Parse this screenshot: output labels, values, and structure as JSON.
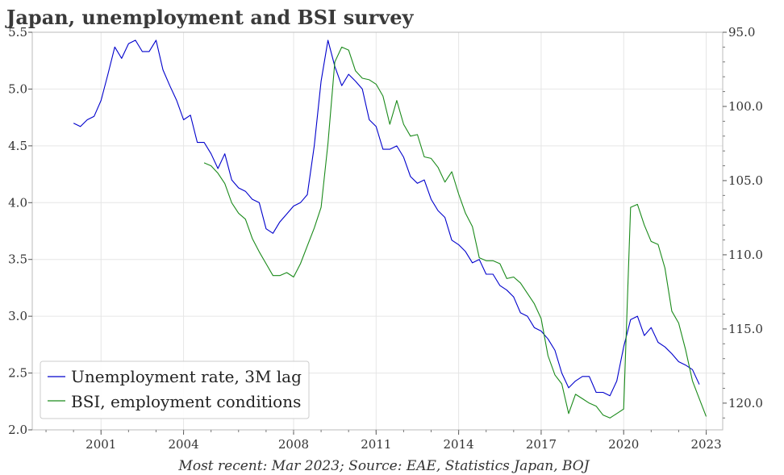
{
  "chart_data": {
    "type": "line",
    "title": "Japan, unemployment and BSI survey",
    "source_note": "Most recent: Mar 2023; Source: EAE, Statistics Japan, BOJ",
    "xlim": [
      1998.5,
      2023.6
    ],
    "x_ticks": [
      {
        "label": "2001",
        "value": 2001
      },
      {
        "label": "2004",
        "value": 2004
      },
      {
        "label": "2008",
        "value": 2008
      },
      {
        "label": "2011",
        "value": 2011
      },
      {
        "label": "2014",
        "value": 2014
      },
      {
        "label": "2017",
        "value": 2017
      },
      {
        "label": "2020",
        "value": 2020
      },
      {
        "label": "2023",
        "value": 2023
      }
    ],
    "y_left": {
      "ylim": [
        2.0,
        5.5
      ],
      "ticks": [
        "2.0",
        "2.5",
        "3.0",
        "3.5",
        "4.0",
        "4.5",
        "5.0",
        "5.5"
      ]
    },
    "y_right": {
      "ylim": [
        95.0,
        121.8
      ],
      "inverted": true,
      "ticks": [
        "95.0",
        "100.0",
        "105.0",
        "110.0",
        "115.0",
        "120.0"
      ]
    },
    "grid": true,
    "legend_position": "bottom-left",
    "series": [
      {
        "name": "Unemployment rate, 3M lag",
        "color": "#0000cc",
        "axis": "left",
        "points": [
          [
            2000.0,
            4.7
          ],
          [
            2000.25,
            4.67
          ],
          [
            2000.5,
            4.73
          ],
          [
            2000.75,
            4.76
          ],
          [
            2001.0,
            4.9
          ],
          [
            2001.25,
            5.13
          ],
          [
            2001.5,
            5.37
          ],
          [
            2001.75,
            5.27
          ],
          [
            2002.0,
            5.4
          ],
          [
            2002.25,
            5.43
          ],
          [
            2002.5,
            5.33
          ],
          [
            2002.75,
            5.33
          ],
          [
            2003.0,
            5.43
          ],
          [
            2003.25,
            5.17
          ],
          [
            2003.5,
            5.03
          ],
          [
            2003.75,
            4.9
          ],
          [
            2004.0,
            4.73
          ],
          [
            2004.25,
            4.77
          ],
          [
            2004.5,
            4.53
          ],
          [
            2004.75,
            4.53
          ],
          [
            2005.0,
            4.43
          ],
          [
            2005.25,
            4.3
          ],
          [
            2005.5,
            4.43
          ],
          [
            2005.75,
            4.2
          ],
          [
            2006.0,
            4.13
          ],
          [
            2006.25,
            4.1
          ],
          [
            2006.5,
            4.03
          ],
          [
            2006.75,
            4.0
          ],
          [
            2007.0,
            3.77
          ],
          [
            2007.25,
            3.73
          ],
          [
            2007.5,
            3.83
          ],
          [
            2007.75,
            3.9
          ],
          [
            2008.0,
            3.97
          ],
          [
            2008.25,
            4.0
          ],
          [
            2008.5,
            4.07
          ],
          [
            2008.75,
            4.5
          ],
          [
            2009.0,
            5.07
          ],
          [
            2009.25,
            5.43
          ],
          [
            2009.5,
            5.2
          ],
          [
            2009.75,
            5.03
          ],
          [
            2010.0,
            5.13
          ],
          [
            2010.25,
            5.07
          ],
          [
            2010.5,
            5.0
          ],
          [
            2010.75,
            4.73
          ],
          [
            2011.0,
            4.67
          ],
          [
            2011.25,
            4.47
          ],
          [
            2011.5,
            4.47
          ],
          [
            2011.75,
            4.5
          ],
          [
            2012.0,
            4.4
          ],
          [
            2012.25,
            4.23
          ],
          [
            2012.5,
            4.17
          ],
          [
            2012.75,
            4.2
          ],
          [
            2013.0,
            4.03
          ],
          [
            2013.25,
            3.93
          ],
          [
            2013.5,
            3.87
          ],
          [
            2013.75,
            3.67
          ],
          [
            2014.0,
            3.63
          ],
          [
            2014.25,
            3.57
          ],
          [
            2014.5,
            3.47
          ],
          [
            2014.75,
            3.5
          ],
          [
            2015.0,
            3.37
          ],
          [
            2015.25,
            3.37
          ],
          [
            2015.5,
            3.27
          ],
          [
            2015.75,
            3.23
          ],
          [
            2016.0,
            3.17
          ],
          [
            2016.25,
            3.03
          ],
          [
            2016.5,
            3.0
          ],
          [
            2016.75,
            2.9
          ],
          [
            2017.0,
            2.87
          ],
          [
            2017.25,
            2.8
          ],
          [
            2017.5,
            2.7
          ],
          [
            2017.75,
            2.5
          ],
          [
            2018.0,
            2.37
          ],
          [
            2018.25,
            2.43
          ],
          [
            2018.5,
            2.47
          ],
          [
            2018.75,
            2.47
          ],
          [
            2019.0,
            2.33
          ],
          [
            2019.25,
            2.33
          ],
          [
            2019.5,
            2.3
          ],
          [
            2019.75,
            2.43
          ],
          [
            2020.0,
            2.73
          ],
          [
            2020.25,
            2.97
          ],
          [
            2020.5,
            3.0
          ],
          [
            2020.75,
            2.83
          ],
          [
            2021.0,
            2.9
          ],
          [
            2021.25,
            2.77
          ],
          [
            2021.5,
            2.73
          ],
          [
            2021.75,
            2.67
          ],
          [
            2022.0,
            2.6
          ],
          [
            2022.25,
            2.57
          ],
          [
            2022.5,
            2.53
          ],
          [
            2022.75,
            2.4
          ]
        ]
      },
      {
        "name": "BSI, employment conditions",
        "color": "#1a8a1a",
        "axis": "right",
        "points": [
          [
            2004.75,
            103.8
          ],
          [
            2005.0,
            104.0
          ],
          [
            2005.25,
            104.5
          ],
          [
            2005.5,
            105.2
          ],
          [
            2005.75,
            106.5
          ],
          [
            2006.0,
            107.2
          ],
          [
            2006.25,
            107.6
          ],
          [
            2006.5,
            108.9
          ],
          [
            2006.75,
            109.8
          ],
          [
            2007.0,
            110.6
          ],
          [
            2007.25,
            111.4
          ],
          [
            2007.5,
            111.4
          ],
          [
            2007.75,
            111.2
          ],
          [
            2008.0,
            111.5
          ],
          [
            2008.25,
            110.6
          ],
          [
            2008.5,
            109.4
          ],
          [
            2008.75,
            108.2
          ],
          [
            2009.0,
            106.8
          ],
          [
            2009.25,
            102.5
          ],
          [
            2009.5,
            97.0
          ],
          [
            2009.75,
            96.0
          ],
          [
            2010.0,
            96.2
          ],
          [
            2010.25,
            97.6
          ],
          [
            2010.5,
            98.1
          ],
          [
            2010.75,
            98.2
          ],
          [
            2011.0,
            98.5
          ],
          [
            2011.25,
            99.3
          ],
          [
            2011.5,
            101.2
          ],
          [
            2011.75,
            99.6
          ],
          [
            2012.0,
            101.2
          ],
          [
            2012.25,
            102.0
          ],
          [
            2012.5,
            101.9
          ],
          [
            2012.75,
            103.4
          ],
          [
            2013.0,
            103.5
          ],
          [
            2013.25,
            104.1
          ],
          [
            2013.5,
            105.1
          ],
          [
            2013.75,
            104.4
          ],
          [
            2014.0,
            105.9
          ],
          [
            2014.25,
            107.2
          ],
          [
            2014.5,
            108.1
          ],
          [
            2014.75,
            110.2
          ],
          [
            2015.0,
            110.4
          ],
          [
            2015.25,
            110.4
          ],
          [
            2015.5,
            110.6
          ],
          [
            2015.75,
            111.6
          ],
          [
            2016.0,
            111.5
          ],
          [
            2016.25,
            111.9
          ],
          [
            2016.5,
            112.6
          ],
          [
            2016.75,
            113.3
          ],
          [
            2017.0,
            114.3
          ],
          [
            2017.25,
            116.8
          ],
          [
            2017.5,
            118.1
          ],
          [
            2017.75,
            118.7
          ],
          [
            2018.0,
            120.7
          ],
          [
            2018.25,
            119.4
          ],
          [
            2018.5,
            119.7
          ],
          [
            2018.75,
            120.0
          ],
          [
            2019.0,
            120.2
          ],
          [
            2019.25,
            120.8
          ],
          [
            2019.5,
            121.0
          ],
          [
            2019.75,
            120.7
          ],
          [
            2020.0,
            120.4
          ],
          [
            2020.25,
            106.8
          ],
          [
            2020.5,
            106.6
          ],
          [
            2020.75,
            108.0
          ],
          [
            2021.0,
            109.1
          ],
          [
            2021.25,
            109.3
          ],
          [
            2021.5,
            110.9
          ],
          [
            2021.75,
            113.8
          ],
          [
            2022.0,
            114.6
          ],
          [
            2022.25,
            116.4
          ],
          [
            2022.5,
            118.5
          ],
          [
            2022.75,
            119.7
          ],
          [
            2023.0,
            120.9
          ]
        ]
      }
    ]
  }
}
